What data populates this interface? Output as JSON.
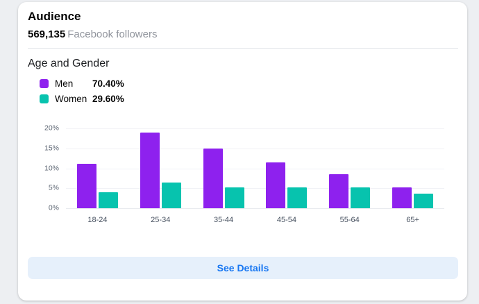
{
  "header": {
    "title": "Audience",
    "followers_count": "569,135",
    "followers_label": "Facebook followers"
  },
  "section_title": "Age and Gender",
  "legend": {
    "items": [
      {
        "label": "Men",
        "value": "70.40%",
        "color": "#8E21EE"
      },
      {
        "label": "Women",
        "value": "29.60%",
        "color": "#07C3AE"
      }
    ]
  },
  "chart_data": {
    "type": "bar",
    "title": "Age and Gender",
    "categories": [
      "18-24",
      "25-34",
      "35-44",
      "45-54",
      "55-64",
      "65+"
    ],
    "series": [
      {
        "name": "Men",
        "color": "#8E21EE",
        "values": [
          11.2,
          18.9,
          14.9,
          11.5,
          8.6,
          5.3
        ]
      },
      {
        "name": "Women",
        "color": "#07C3AE",
        "values": [
          4.0,
          6.4,
          5.2,
          5.2,
          5.2,
          3.6
        ]
      }
    ],
    "y_ticks": [
      "0%",
      "5%",
      "10%",
      "15%",
      "20%"
    ],
    "ylim": [
      0,
      20
    ],
    "grid": true,
    "legend_position": "top-left"
  },
  "footer": {
    "see_details_label": "See Details"
  },
  "colors": {
    "accent_blue": "#1877F2",
    "button_bg": "#E6F0FB",
    "men": "#8E21EE",
    "women": "#07C3AE",
    "page_bg": "#EDEFF2",
    "card_bg": "#FFFFFF"
  }
}
